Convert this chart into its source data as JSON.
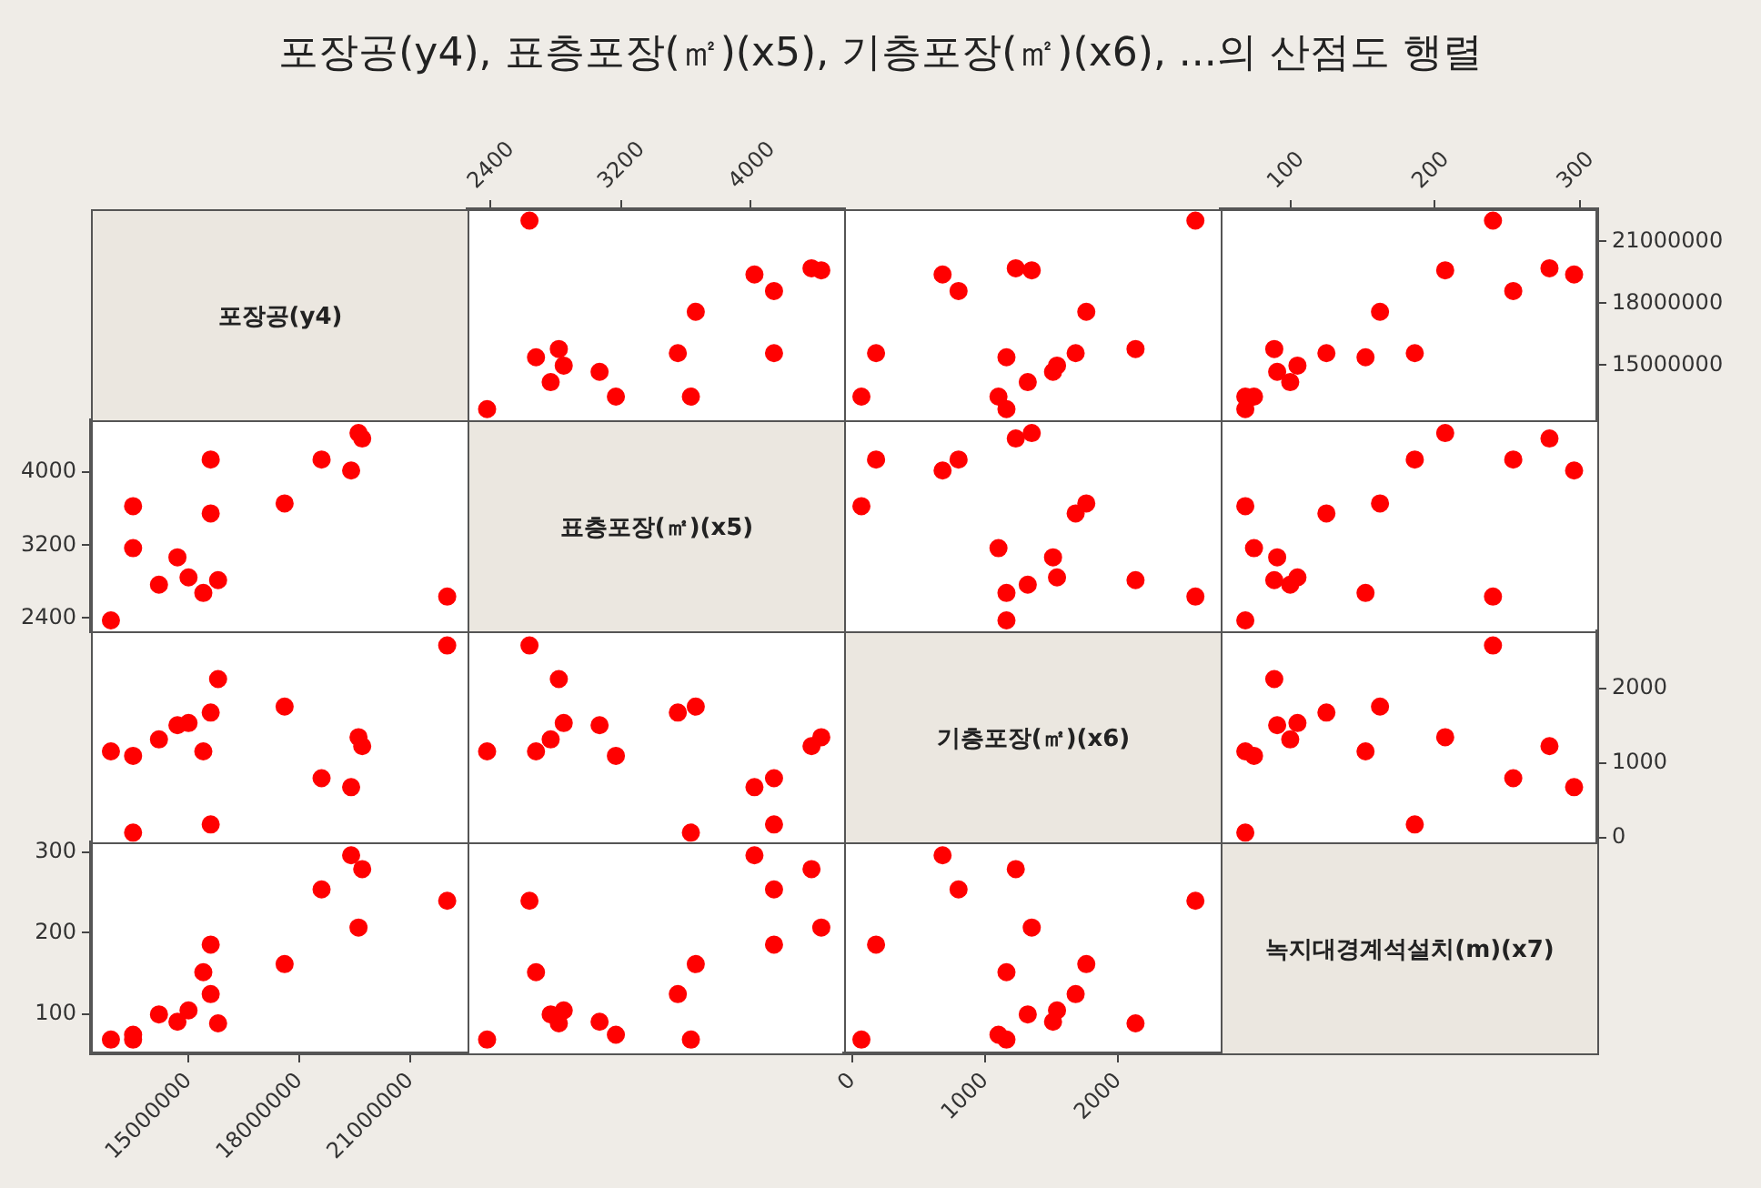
{
  "chart_data": [
    {
      "type": "other",
      "title": "포장공(y4), 표층포장(㎡)(x5), 기층포장(㎡)(x6), ...의 산점도 행렬"
    },
    {
      "type": "other",
      "title": "포장공(y4)"
    },
    {
      "type": "scatter",
      "marker": "circle",
      "color": "#ff0000",
      "x": [
        2380,
        3630,
        3170,
        2770,
        3070,
        2850,
        2680,
        4140,
        3550,
        2820,
        3660,
        4140,
        4020,
        4430,
        4370,
        2640
      ],
      "values": [
        12900000,
        13500000,
        13500000,
        14200000,
        14700000,
        15000000,
        15400000,
        15600000,
        15600000,
        15800000,
        17600000,
        18600000,
        19400000,
        19600000,
        19700000,
        22000000
      ],
      "xlim": [
        2260,
        4570
      ],
      "xticks": [
        2400,
        3200,
        4000
      ],
      "ylim": [
        12360000,
        22550000
      ],
      "yticks": [
        15000000,
        18000000,
        21000000
      ],
      "tick_labels": "x"
    },
    {
      "type": "scatter",
      "marker": "circle",
      "color": "#ff0000",
      "x": [
        1160,
        70,
        1100,
        1320,
        1510,
        1540,
        1160,
        180,
        1680,
        2130,
        1760,
        800,
        680,
        1350,
        1230,
        2580
      ],
      "values": [
        12900000,
        13500000,
        13500000,
        14200000,
        14700000,
        15000000,
        15400000,
        15600000,
        15600000,
        15800000,
        17600000,
        18600000,
        19400000,
        19600000,
        19700000,
        22000000
      ],
      "xlim": [
        -60,
        2770
      ],
      "xticks": [
        0,
        1000,
        2000
      ],
      "ylim": [
        12360000,
        22550000
      ],
      "yticks": [
        15000000,
        18000000,
        21000000
      ],
      "tick_labels": false
    },
    {
      "type": "scatter",
      "marker": "circle",
      "color": "#ff0000",
      "x": [
        69,
        69,
        75,
        100,
        91,
        105,
        152,
        186,
        125,
        89,
        162,
        254,
        296,
        207,
        279,
        240
      ],
      "values": [
        12900000,
        13500000,
        13500000,
        14200000,
        14700000,
        15000000,
        15400000,
        15600000,
        15600000,
        15800000,
        17600000,
        18600000,
        19400000,
        19600000,
        19700000,
        22000000
      ],
      "xlim": [
        52,
        312
      ],
      "xticks": [
        100,
        200,
        300
      ],
      "ylim": [
        12360000,
        22550000
      ],
      "yticks": [
        15000000,
        18000000,
        21000000
      ]
    },
    {
      "type": "scatter",
      "marker": "circle",
      "color": "#ff0000",
      "x": [
        12900000,
        13500000,
        13500000,
        14200000,
        14700000,
        15000000,
        15400000,
        15600000,
        15600000,
        15800000,
        17600000,
        18600000,
        19400000,
        19600000,
        19700000,
        22000000
      ],
      "values": [
        2380,
        3630,
        3170,
        2770,
        3070,
        2850,
        2680,
        4140,
        3550,
        2820,
        3660,
        4140,
        4020,
        4430,
        4370,
        2640
      ],
      "xlim": [
        12360000,
        22550000
      ],
      "xticks": [
        15000000,
        18000000,
        21000000
      ],
      "ylim": [
        2260,
        4570
      ],
      "yticks": [
        2400,
        3200,
        4000
      ],
      "tick_labels": "y"
    },
    {
      "type": "other",
      "title": "표층포장(㎡)(x5)"
    },
    {
      "type": "scatter",
      "marker": "circle",
      "color": "#ff0000",
      "x": [
        1160,
        70,
        1100,
        1320,
        1510,
        1540,
        1160,
        180,
        1680,
        2130,
        1760,
        800,
        680,
        1350,
        1230,
        2580
      ],
      "values": [
        2380,
        3630,
        3170,
        2770,
        3070,
        2850,
        2680,
        4140,
        3550,
        2820,
        3660,
        4140,
        4020,
        4430,
        4370,
        2640
      ],
      "xlim": [
        -60,
        2770
      ],
      "xticks": [
        0,
        1000,
        2000
      ],
      "ylim": [
        2260,
        4570
      ],
      "yticks": [
        2400,
        3200,
        4000
      ],
      "tick_labels": false
    },
    {
      "type": "scatter",
      "marker": "circle",
      "color": "#ff0000",
      "x": [
        69,
        69,
        75,
        100,
        91,
        105,
        152,
        186,
        125,
        89,
        162,
        254,
        296,
        207,
        279,
        240
      ],
      "values": [
        2380,
        3630,
        3170,
        2770,
        3070,
        2850,
        2680,
        4140,
        3550,
        2820,
        3660,
        4140,
        4020,
        4430,
        4370,
        2640
      ],
      "xlim": [
        52,
        312
      ],
      "xticks": [
        100,
        200,
        300
      ],
      "ylim": [
        2260,
        4570
      ],
      "yticks": [
        2400,
        3200,
        4000
      ],
      "tick_labels": false
    },
    {
      "type": "scatter",
      "marker": "circle",
      "color": "#ff0000",
      "x": [
        12900000,
        13500000,
        13500000,
        14200000,
        14700000,
        15000000,
        15400000,
        15600000,
        15600000,
        15800000,
        17600000,
        18600000,
        19400000,
        19600000,
        19700000,
        22000000
      ],
      "values": [
        1160,
        70,
        1100,
        1320,
        1510,
        1540,
        1160,
        180,
        1680,
        2130,
        1760,
        800,
        680,
        1350,
        1230,
        2580
      ],
      "xlim": [
        12360000,
        22550000
      ],
      "xticks": [
        15000000,
        18000000,
        21000000
      ],
      "ylim": [
        -60,
        2770
      ],
      "yticks": [
        0,
        1000,
        2000
      ],
      "tick_labels": false
    },
    {
      "type": "scatter",
      "marker": "circle",
      "color": "#ff0000",
      "x": [
        2380,
        3630,
        3170,
        2770,
        3070,
        2850,
        2680,
        4140,
        3550,
        2820,
        3660,
        4140,
        4020,
        4430,
        4370,
        2640
      ],
      "values": [
        1160,
        70,
        1100,
        1320,
        1510,
        1540,
        1160,
        180,
        1680,
        2130,
        1760,
        800,
        680,
        1350,
        1230,
        2580
      ],
      "xlim": [
        2260,
        4570
      ],
      "xticks": [
        2400,
        3200,
        4000
      ],
      "ylim": [
        -60,
        2770
      ],
      "yticks": [
        0,
        1000,
        2000
      ],
      "tick_labels": false
    },
    {
      "type": "other",
      "title": "기층포장(㎡)(x6)"
    },
    {
      "type": "scatter",
      "marker": "circle",
      "color": "#ff0000",
      "x": [
        69,
        69,
        75,
        100,
        91,
        105,
        152,
        186,
        125,
        89,
        162,
        254,
        296,
        207,
        279,
        240
      ],
      "values": [
        1160,
        70,
        1100,
        1320,
        1510,
        1540,
        1160,
        180,
        1680,
        2130,
        1760,
        800,
        680,
        1350,
        1230,
        2580
      ],
      "xlim": [
        52,
        312
      ],
      "xticks": [
        100,
        200,
        300
      ],
      "ylim": [
        -60,
        2770
      ],
      "yticks": [
        0,
        1000,
        2000
      ],
      "tick_labels": "y"
    },
    {
      "type": "scatter",
      "marker": "circle",
      "color": "#ff0000",
      "x": [
        12900000,
        13500000,
        13500000,
        14200000,
        14700000,
        15000000,
        15400000,
        15600000,
        15600000,
        15800000,
        17600000,
        18600000,
        19400000,
        19600000,
        19700000,
        22000000
      ],
      "values": [
        69,
        69,
        75,
        100,
        91,
        105,
        152,
        186,
        125,
        89,
        162,
        254,
        296,
        207,
        279,
        240
      ],
      "xlim": [
        12360000,
        22550000
      ],
      "xticks": [
        15000000,
        18000000,
        21000000
      ],
      "ylim": [
        52,
        312
      ],
      "yticks": [
        100,
        200,
        300
      ]
    },
    {
      "type": "scatter",
      "marker": "circle",
      "color": "#ff0000",
      "x": [
        2380,
        3630,
        3170,
        2770,
        3070,
        2850,
        2680,
        4140,
        3550,
        2820,
        3660,
        4140,
        4020,
        4430,
        4370,
        2640
      ],
      "values": [
        69,
        69,
        75,
        100,
        91,
        105,
        152,
        186,
        125,
        89,
        162,
        254,
        296,
        207,
        279,
        240
      ],
      "xlim": [
        2260,
        4570
      ],
      "xticks": [
        2400,
        3200,
        4000
      ],
      "ylim": [
        52,
        312
      ],
      "yticks": [
        100,
        200,
        300
      ],
      "tick_labels": false
    },
    {
      "type": "scatter",
      "marker": "circle",
      "color": "#ff0000",
      "x": [
        1160,
        70,
        1100,
        1320,
        1510,
        1540,
        1160,
        180,
        1680,
        2130,
        1760,
        800,
        680,
        1350,
        1230,
        2580
      ],
      "values": [
        69,
        69,
        75,
        100,
        91,
        105,
        152,
        186,
        125,
        89,
        162,
        254,
        296,
        207,
        279,
        240
      ],
      "xlim": [
        -60,
        2770
      ],
      "xticks": [
        0,
        1000,
        2000
      ],
      "ylim": [
        52,
        312
      ],
      "yticks": [
        100,
        200,
        300
      ],
      "tick_labels": "x"
    },
    {
      "type": "other",
      "title": "녹지대경계석설치(m)(x7)"
    }
  ]
}
